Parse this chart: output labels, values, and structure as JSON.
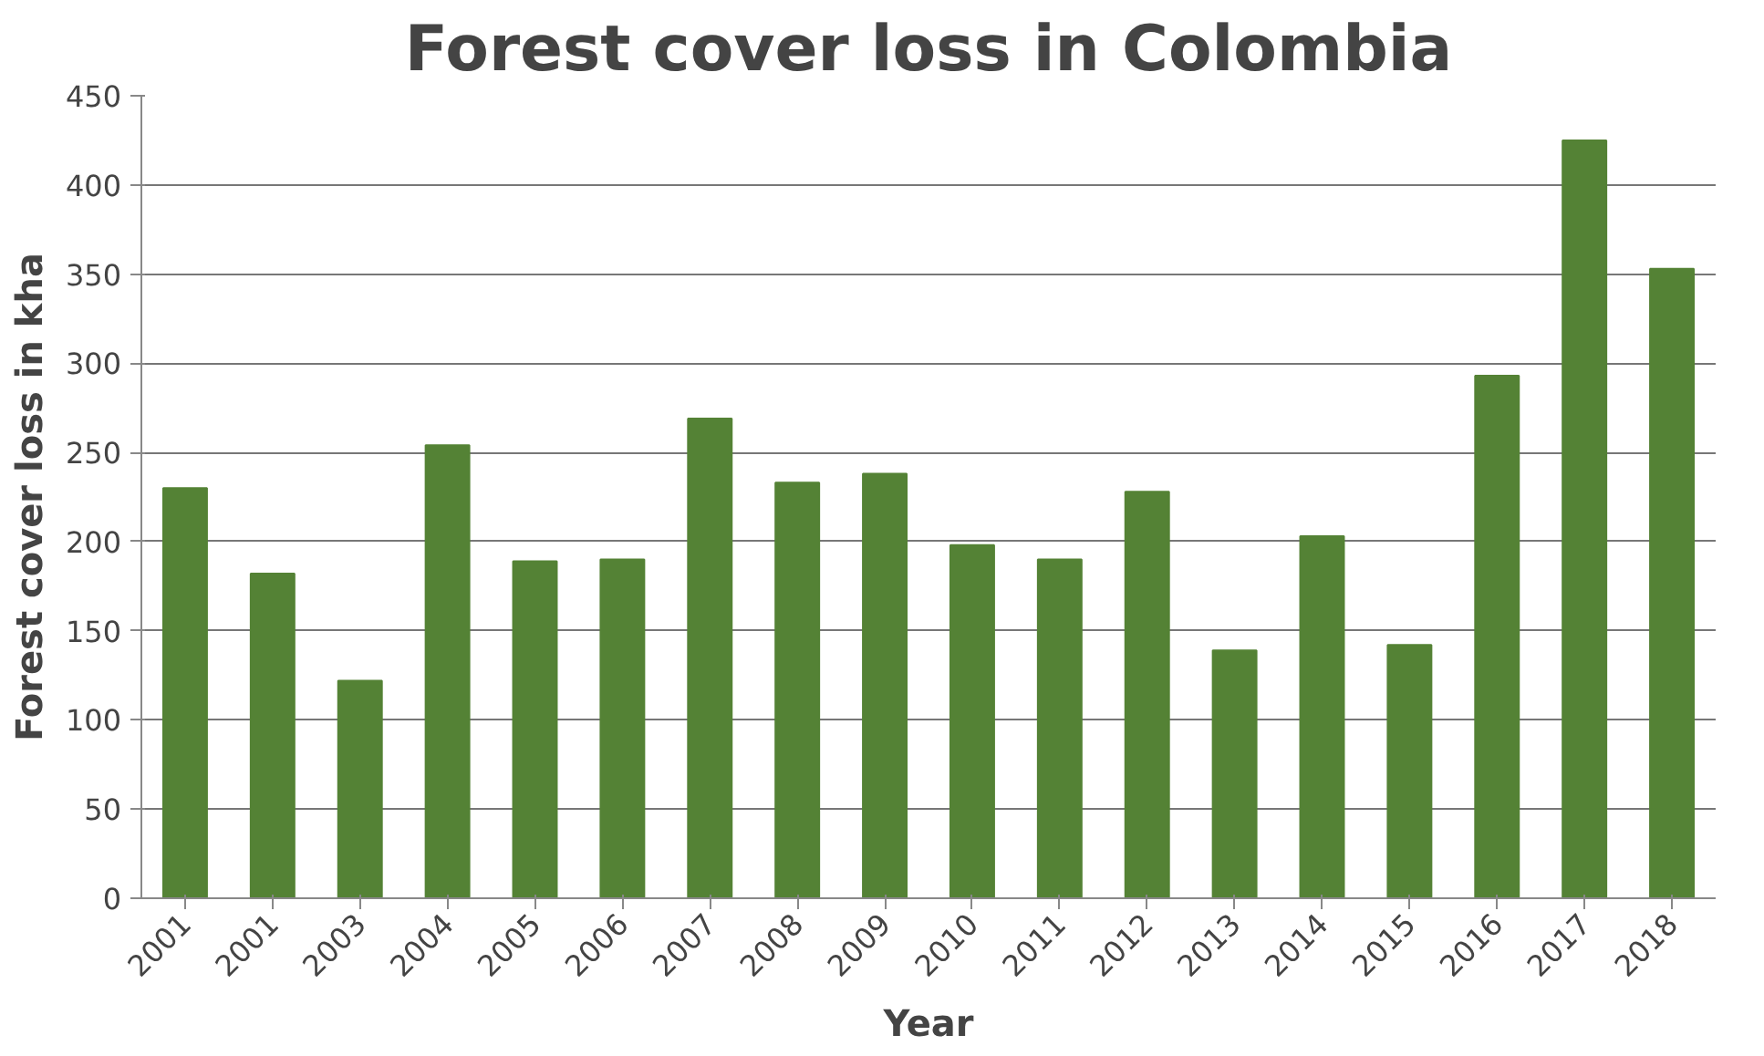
{
  "chart_data": {
    "type": "bar",
    "title": "Forest cover loss in Colombia",
    "xlabel": "Year",
    "ylabel": "Forest cover loss in kha",
    "categories": [
      "2001",
      "2001",
      "2003",
      "2004",
      "2005",
      "2006",
      "2007",
      "2008",
      "2009",
      "2010",
      "2011",
      "2012",
      "2013",
      "2014",
      "2015",
      "2016",
      "2017",
      "2018"
    ],
    "values": [
      230,
      182,
      122,
      254,
      189,
      190,
      269,
      233,
      238,
      198,
      190,
      228,
      139,
      203,
      142,
      293,
      425,
      353
    ],
    "color": "#548235",
    "ylim": [
      0,
      450
    ],
    "yticks": [
      0,
      50,
      100,
      150,
      200,
      250,
      300,
      350,
      400,
      450
    ],
    "grid": "y"
  }
}
